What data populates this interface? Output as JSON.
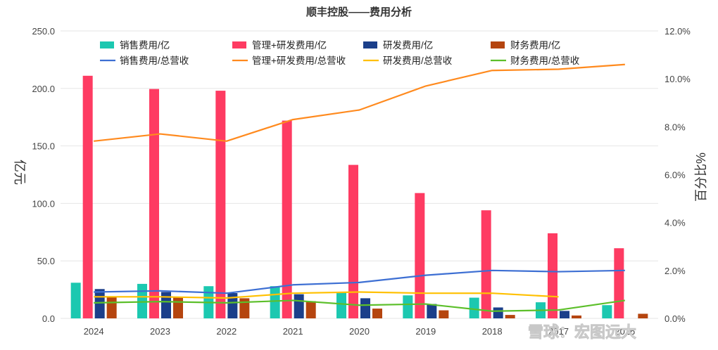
{
  "chart_data": {
    "type": "bar",
    "title": "顺丰控股——费用分析",
    "ylabel_left": "亿元",
    "ylabel_right": "百分比%",
    "categories": [
      "2024",
      "2023",
      "2022",
      "2021",
      "2020",
      "2019",
      "2018",
      "2017",
      "2016"
    ],
    "ylim_left": [
      0,
      250
    ],
    "yticks_left": [
      "0.0",
      "50.0",
      "100.0",
      "150.0",
      "200.0",
      "250.0"
    ],
    "ylim_right": [
      0,
      12
    ],
    "yticks_right": [
      "0.0%",
      "2.0%",
      "4.0%",
      "6.0%",
      "8.0%",
      "10.0%",
      "12.0%"
    ],
    "bar_series": [
      {
        "name": "销售费用/亿",
        "color": "#1cc8b0",
        "values": [
          31.0,
          30.0,
          28.0,
          28.0,
          23.0,
          20.0,
          18.0,
          14.0,
          11.5
        ]
      },
      {
        "name": "管理+研发费用/亿",
        "color": "#fe3b62",
        "values": [
          211.0,
          199.5,
          198.0,
          172.0,
          133.5,
          109.0,
          94.0,
          74.0,
          61.0
        ]
      },
      {
        "name": "研发费用/亿",
        "color": "#1b3f8a",
        "values": [
          25.5,
          23.0,
          22.0,
          21.0,
          17.5,
          12.5,
          9.5,
          6.5,
          0
        ]
      },
      {
        "name": "财务费用/亿",
        "color": "#b5450f",
        "values": [
          18.5,
          18.0,
          17.5,
          15.0,
          8.5,
          7.0,
          3.0,
          2.5,
          4.0
        ]
      }
    ],
    "line_series": [
      {
        "name": "销售费用/总营收",
        "color": "#3d6fd3",
        "values": [
          1.1,
          1.15,
          1.05,
          1.4,
          1.5,
          1.8,
          2.0,
          1.95,
          2.0
        ]
      },
      {
        "name": "管理+研发费用/总营收",
        "color": "#ff8a1e",
        "values": [
          7.4,
          7.7,
          7.4,
          8.3,
          8.7,
          9.7,
          10.35,
          10.4,
          10.6
        ]
      },
      {
        "name": "研发费用/总营收",
        "color": "#ffc000",
        "values": [
          0.9,
          0.9,
          0.85,
          1.05,
          1.1,
          1.05,
          1.05,
          0.9,
          null
        ]
      },
      {
        "name": "财务费用/总营收",
        "color": "#5cbf2a",
        "values": [
          0.65,
          0.7,
          0.65,
          0.75,
          0.55,
          0.6,
          0.3,
          0.35,
          0.75
        ]
      }
    ],
    "grid": true,
    "legend_position": "top"
  },
  "watermark": "雪球：宏图远大"
}
